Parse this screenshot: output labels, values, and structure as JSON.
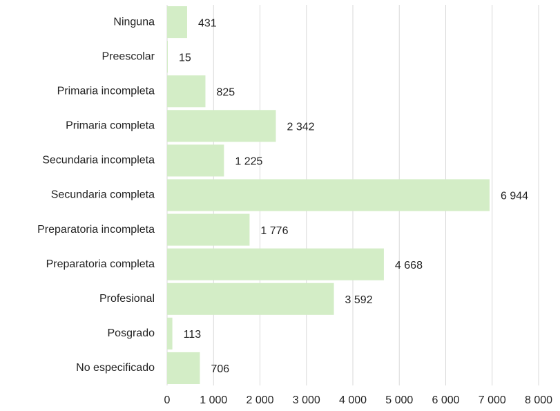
{
  "chart_data": {
    "type": "barh",
    "categories": [
      "Ninguna",
      "Preescolar",
      "Primaria incompleta",
      "Primaria completa",
      "Secundaria incompleta",
      "Secundaria completa",
      "Preparatoria incompleta",
      "Preparatoria completa",
      "Profesional",
      "Posgrado",
      "No especificado"
    ],
    "values": [
      431,
      15,
      825,
      2342,
      1225,
      6944,
      1776,
      4668,
      3592,
      113,
      706
    ],
    "value_labels": [
      "431",
      "15",
      "825",
      "2 342",
      "1 225",
      "6 944",
      "1 776",
      "4 668",
      "3 592",
      "113",
      "706"
    ],
    "color": "#d3edc6",
    "xlim": [
      0,
      8000
    ],
    "xticks": [
      0,
      {
        "value": 1000,
        "label": "1 000"
      },
      {
        "value": 2000,
        "label": "2 000"
      },
      {
        "value": 3000,
        "label": "3 000"
      },
      {
        "value": 4000,
        "label": "4 000"
      },
      {
        "value": 5000,
        "label": "5 000"
      },
      {
        "value": 6000,
        "label": "6 000"
      },
      {
        "value": 7000,
        "label": "7 000"
      },
      {
        "value": 8000,
        "label": "8 000"
      }
    ],
    "grid": true
  }
}
